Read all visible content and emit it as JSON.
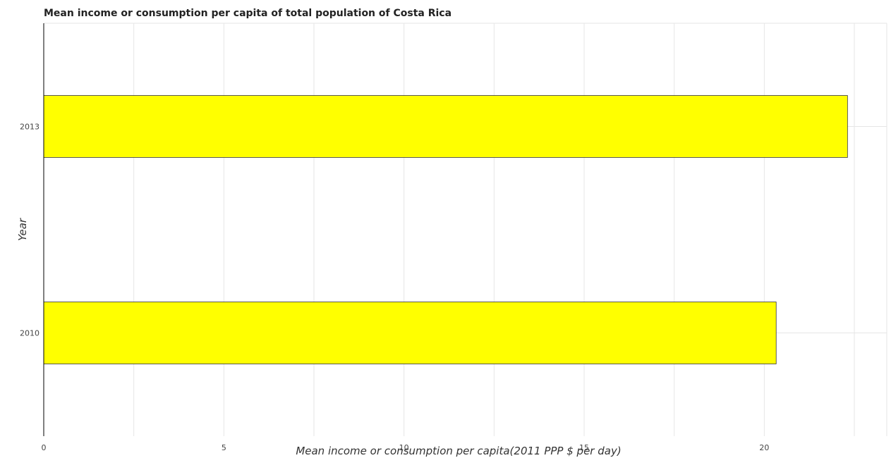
{
  "chart_data": {
    "type": "bar",
    "orientation": "horizontal",
    "title": "Mean income or consumption per capita of total population of Costa Rica",
    "xlabel": "Mean income or consumption per capita(2011 PPP $ per day)",
    "ylabel": "Year",
    "categories": [
      "2010",
      "2013"
    ],
    "values": [
      20.33,
      22.31
    ],
    "xlim": [
      0,
      23.4
    ],
    "xticks": [
      0,
      5,
      10,
      15,
      20
    ],
    "xtick_labels": [
      "0",
      "5",
      "10",
      "15",
      "20"
    ],
    "grid": true,
    "bar_color": "#ffff00",
    "legend": "none"
  }
}
